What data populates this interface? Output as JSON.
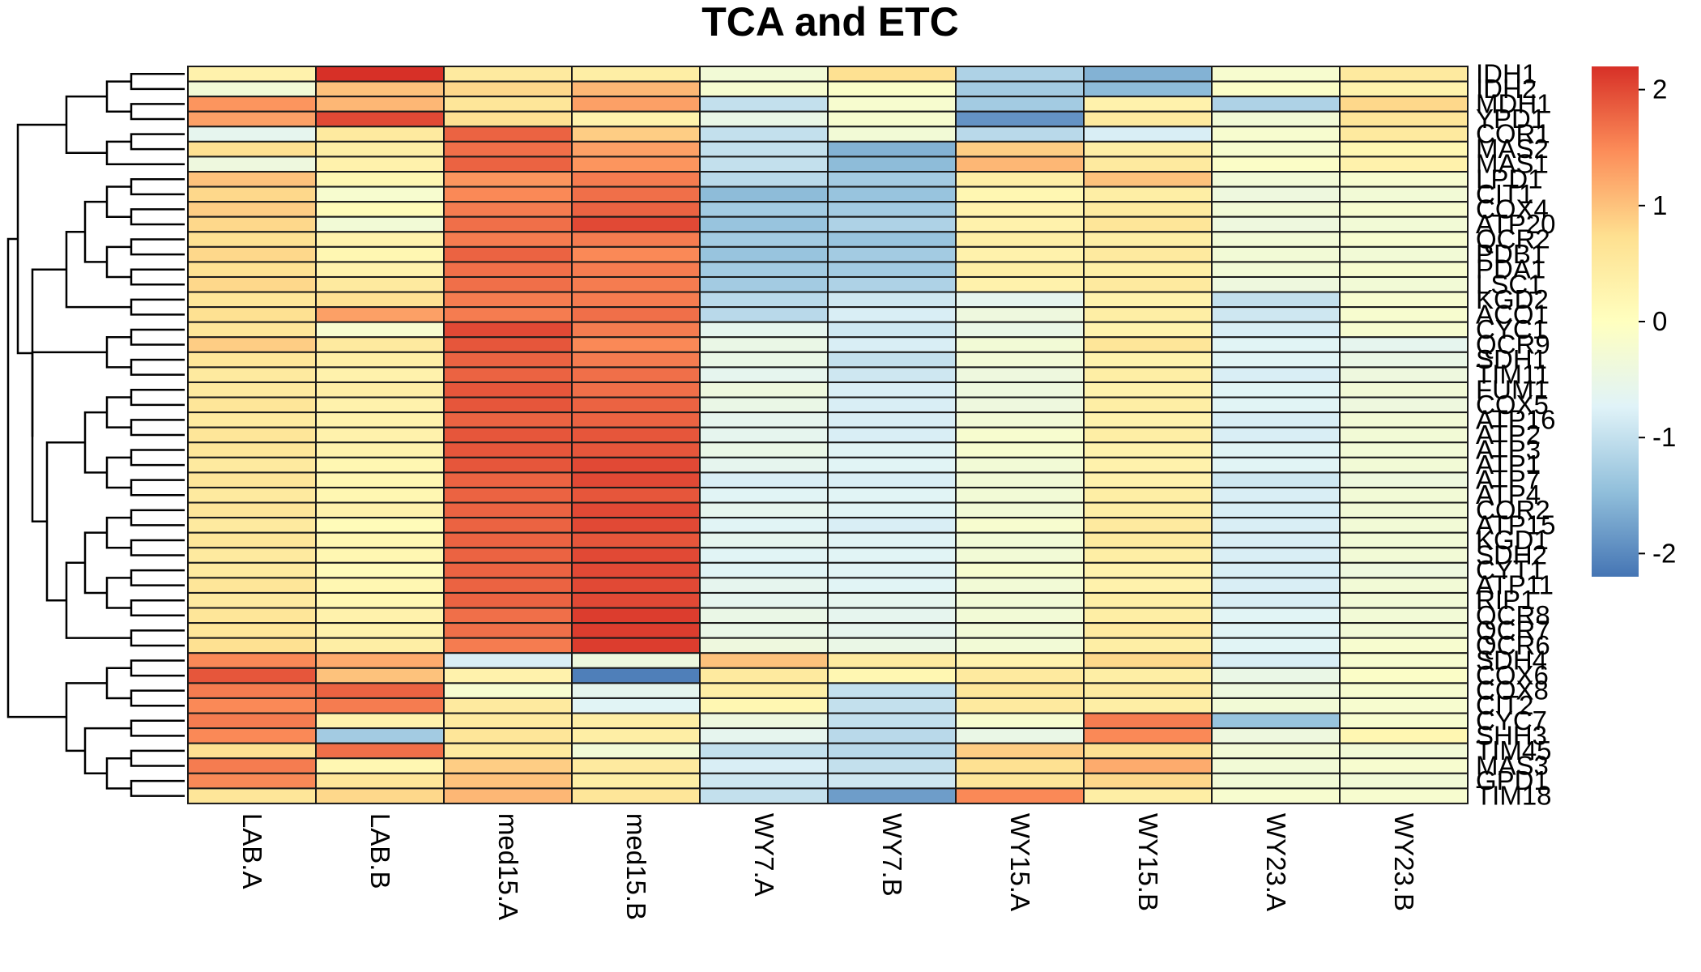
{
  "chart_data": {
    "type": "heatmap",
    "title": "TCA and ETC",
    "columns": [
      "LAB.A",
      "LAB.B",
      "med15.A",
      "med15.B",
      "WY7.A",
      "WY7.B",
      "WY15.A",
      "WY15.B",
      "WY23.A",
      "WY23.B"
    ],
    "rows": [
      "IDH1",
      "IDH2",
      "MDH1",
      "YPD1",
      "COR1",
      "MAS2",
      "MAS1",
      "LPD1",
      "CIT1",
      "COX4",
      "ATP20",
      "QCR2",
      "PDB1",
      "PDA1",
      "LSC1",
      "KGD2",
      "ACO1",
      "CYC1",
      "QCR9",
      "SDH1",
      "TIM11",
      "FUM1",
      "COX5",
      "ATP16",
      "ATP2",
      "ATP3",
      "ATP1",
      "ATP7",
      "ATP4",
      "COR2",
      "ATP15",
      "KGD1",
      "SDH2",
      "CYT1",
      "ATP11",
      "RIP1",
      "QCR8",
      "QCR7",
      "QCR6",
      "SDH4",
      "COX6",
      "COX8",
      "CIT2",
      "CYC7",
      "SHH3",
      "TIM45",
      "MAS3",
      "GPD1",
      "TIM18"
    ],
    "colormap": {
      "range": [
        -2.2,
        2.2
      ],
      "stops": [
        "#4575B4",
        "#91BFDB",
        "#E0F3F8",
        "#FFFFBF",
        "#FEE090",
        "#FC8D59",
        "#D73027"
      ]
    },
    "legend_ticks": [
      2,
      1,
      0,
      -1,
      -2
    ],
    "values": [
      [
        0.3,
        2.2,
        0.5,
        0.4,
        -0.3,
        0.7,
        -1.2,
        -1.6,
        -0.2,
        0.5
      ],
      [
        -0.3,
        1.0,
        0.8,
        1.1,
        -0.2,
        -0.1,
        -1.3,
        -1.5,
        -0.1,
        0.3
      ],
      [
        1.4,
        1.1,
        0.6,
        1.3,
        -1.0,
        -0.2,
        -1.3,
        0.3,
        -1.2,
        0.8
      ],
      [
        1.3,
        2.0,
        0.7,
        0.3,
        -0.5,
        -0.2,
        -1.9,
        0.5,
        -0.3,
        0.6
      ],
      [
        -0.6,
        0.5,
        1.8,
        0.9,
        -1.0,
        -0.3,
        -1.1,
        -0.8,
        -0.2,
        0.5
      ],
      [
        0.7,
        0.4,
        1.7,
        1.3,
        -1.0,
        -1.6,
        0.9,
        0.4,
        -0.2,
        0.2
      ],
      [
        -0.4,
        0.3,
        1.8,
        1.4,
        -1.0,
        -1.5,
        1.1,
        0.5,
        -0.1,
        0.3
      ],
      [
        1.0,
        0.2,
        1.4,
        1.6,
        -1.1,
        -1.3,
        0.4,
        1.0,
        -0.3,
        -0.2
      ],
      [
        0.8,
        -0.2,
        1.5,
        1.7,
        -1.5,
        -1.4,
        0.2,
        0.4,
        -0.4,
        -0.3
      ],
      [
        0.9,
        0.1,
        1.6,
        1.8,
        -1.3,
        -1.3,
        0.3,
        0.5,
        -0.3,
        -0.2
      ],
      [
        0.8,
        -0.3,
        1.7,
        2.0,
        -1.4,
        -1.2,
        0.3,
        0.6,
        -0.4,
        -0.3
      ],
      [
        0.7,
        0.3,
        1.6,
        1.6,
        -1.3,
        -1.4,
        0.4,
        0.4,
        -0.3,
        -0.2
      ],
      [
        0.8,
        0.2,
        1.8,
        1.5,
        -1.4,
        -1.3,
        0.3,
        0.5,
        -0.3,
        -0.3
      ],
      [
        0.7,
        0.3,
        1.7,
        1.6,
        -1.3,
        -1.3,
        0.4,
        0.4,
        -0.3,
        -0.2
      ],
      [
        0.8,
        0.5,
        1.7,
        1.6,
        -1.3,
        -1.2,
        0.3,
        0.5,
        -0.4,
        -0.3
      ],
      [
        0.6,
        0.7,
        1.6,
        1.6,
        -1.1,
        -0.9,
        -0.6,
        0.3,
        -1.0,
        -0.2
      ],
      [
        0.7,
        1.3,
        1.6,
        1.7,
        -1.1,
        -0.8,
        -0.4,
        0.4,
        -0.9,
        -0.2
      ],
      [
        0.6,
        -0.2,
        2.0,
        1.6,
        -0.6,
        -0.9,
        -0.5,
        0.3,
        -0.8,
        -0.2
      ],
      [
        0.9,
        0.5,
        1.9,
        1.5,
        -0.5,
        -0.8,
        -0.3,
        0.6,
        -0.7,
        -0.6
      ],
      [
        0.6,
        0.4,
        1.8,
        1.6,
        -0.5,
        -1.0,
        -0.3,
        0.3,
        -0.7,
        -0.5
      ],
      [
        0.5,
        0.3,
        1.8,
        1.7,
        -0.6,
        -0.9,
        -0.4,
        0.4,
        -0.8,
        -0.4
      ],
      [
        0.5,
        0.4,
        1.9,
        1.7,
        -0.4,
        -0.8,
        -0.4,
        0.3,
        -0.7,
        -0.3
      ],
      [
        0.6,
        0.3,
        1.9,
        1.8,
        -0.5,
        -0.8,
        -0.4,
        0.4,
        -0.7,
        -0.4
      ],
      [
        0.5,
        0.3,
        1.8,
        1.8,
        -0.6,
        -0.8,
        -0.3,
        0.3,
        -0.8,
        -0.3
      ],
      [
        0.6,
        0.3,
        1.9,
        1.9,
        -0.6,
        -0.8,
        -0.2,
        0.4,
        -0.8,
        -0.3
      ],
      [
        0.6,
        0.3,
        1.9,
        1.9,
        -0.5,
        -0.7,
        -0.2,
        0.3,
        -0.7,
        -0.3
      ],
      [
        0.5,
        0.2,
        1.9,
        2.0,
        -0.6,
        -0.7,
        -0.3,
        0.3,
        -0.7,
        -0.3
      ],
      [
        0.6,
        0.2,
        1.8,
        2.0,
        -0.8,
        -0.8,
        -0.3,
        0.3,
        -0.9,
        -0.4
      ],
      [
        0.5,
        0.2,
        1.8,
        1.9,
        -0.7,
        -0.7,
        -0.3,
        0.4,
        -0.8,
        -0.3
      ],
      [
        0.6,
        0.3,
        1.8,
        2.0,
        -0.6,
        -0.7,
        -0.3,
        0.4,
        -0.8,
        -0.3
      ],
      [
        0.5,
        0.1,
        1.8,
        2.0,
        -0.7,
        -0.8,
        -0.2,
        0.5,
        -0.8,
        -0.3
      ],
      [
        0.6,
        0.2,
        1.8,
        1.9,
        -0.6,
        -0.7,
        -0.3,
        0.5,
        -0.8,
        -0.3
      ],
      [
        0.5,
        0.2,
        1.8,
        2.0,
        -0.7,
        -0.7,
        -0.3,
        0.4,
        -0.8,
        -0.3
      ],
      [
        0.5,
        0.1,
        1.8,
        2.0,
        -0.7,
        -0.7,
        -0.2,
        0.3,
        -0.8,
        -0.4
      ],
      [
        0.6,
        0.2,
        1.8,
        2.0,
        -0.6,
        -0.7,
        -0.3,
        0.3,
        -0.8,
        -0.3
      ],
      [
        0.5,
        0.2,
        1.8,
        2.0,
        -0.6,
        -0.6,
        -0.3,
        0.4,
        -0.8,
        -0.3
      ],
      [
        0.6,
        0.3,
        1.7,
        2.1,
        -0.5,
        -0.6,
        -0.3,
        0.4,
        -0.7,
        -0.3
      ],
      [
        0.6,
        0.3,
        1.7,
        2.1,
        -0.5,
        -0.6,
        -0.3,
        0.5,
        -0.7,
        -0.3
      ],
      [
        0.7,
        0.4,
        1.6,
        2.1,
        -0.4,
        -0.5,
        -0.3,
        0.4,
        -0.7,
        -0.2
      ],
      [
        1.5,
        1.2,
        -0.8,
        -0.4,
        1.0,
        0.5,
        0.3,
        0.8,
        -0.8,
        -0.2
      ],
      [
        1.9,
        1.0,
        0.3,
        -2.1,
        0.5,
        0.2,
        0.5,
        0.4,
        -0.5,
        -0.1
      ],
      [
        1.6,
        1.8,
        -0.2,
        -0.6,
        0.4,
        -1.0,
        0.6,
        0.5,
        -0.4,
        -0.2
      ],
      [
        1.5,
        1.6,
        0.5,
        -0.7,
        0.2,
        -1.0,
        0.5,
        0.4,
        -0.3,
        -0.2
      ],
      [
        1.6,
        0.3,
        0.5,
        0.4,
        -0.4,
        -1.0,
        -0.2,
        1.6,
        -1.4,
        -0.2
      ],
      [
        1.5,
        -1.3,
        0.6,
        0.4,
        -0.6,
        -1.1,
        -0.5,
        1.5,
        -0.4,
        0.2
      ],
      [
        0.7,
        1.7,
        0.5,
        -0.3,
        -1.0,
        -1.1,
        0.9,
        0.7,
        -0.3,
        -0.3
      ],
      [
        1.6,
        0.2,
        0.9,
        0.5,
        -0.8,
        -1.0,
        0.7,
        1.2,
        -0.3,
        -0.2
      ],
      [
        1.5,
        0.6,
        1.0,
        0.4,
        -0.9,
        -0.9,
        0.6,
        0.8,
        -0.3,
        -0.3
      ],
      [
        0.6,
        0.8,
        1.1,
        0.6,
        -1.0,
        -1.8,
        1.5,
        0.4,
        -0.2,
        -0.2
      ]
    ]
  }
}
